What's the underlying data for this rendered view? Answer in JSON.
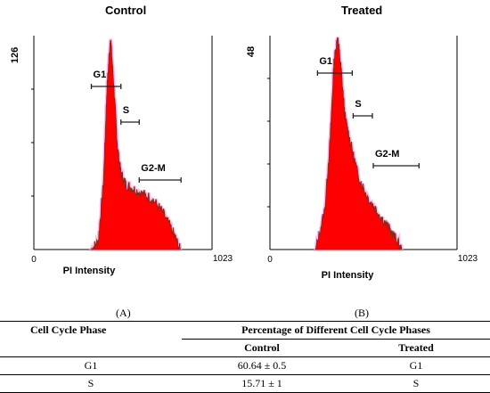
{
  "panels": [
    {
      "id": "A",
      "title": "Control",
      "letter": "(A)",
      "y_max_label": "126",
      "x_min_label": "0",
      "x_max_label": "1023",
      "xlabel": "PI Intensity",
      "gates": [
        {
          "label": "G1"
        },
        {
          "label": "S"
        },
        {
          "label": "G2-M"
        }
      ]
    },
    {
      "id": "B",
      "title": "Treated",
      "letter": "(B)",
      "y_max_label": "48",
      "x_min_label": "0",
      "x_max_label": "1023",
      "xlabel": "PI Intensity",
      "gates": [
        {
          "label": "G1"
        },
        {
          "label": "S"
        },
        {
          "label": "G2-M"
        }
      ]
    }
  ],
  "colors": {
    "histogram_fill": "#ff0000",
    "histogram_edge": "#8b2a14",
    "histogram_glow": "#ff9fe6",
    "axis": "#000000"
  },
  "chart_data": [
    {
      "type": "area",
      "title": "Control",
      "xlabel": "PI Intensity",
      "ylabel": "",
      "xlim": [
        0,
        1023
      ],
      "ylim": [
        0,
        126
      ],
      "series": [
        {
          "x": [
            330,
            370,
            400,
            420,
            440,
            460,
            480,
            500,
            530,
            570,
            620,
            680,
            740,
            800,
            840
          ],
          "values": [
            0,
            5,
            40,
            95,
            126,
            95,
            60,
            45,
            38,
            36,
            33,
            30,
            22,
            10,
            0
          ]
        }
      ],
      "gates": [
        {
          "label": "G1",
          "range": [
            330,
            500
          ]
        },
        {
          "label": "S",
          "range": [
            500,
            605
          ]
        },
        {
          "label": "G2-M",
          "range": [
            605,
            845
          ]
        }
      ]
    },
    {
      "type": "area",
      "title": "Treated",
      "xlabel": "PI Intensity",
      "ylabel": "",
      "xlim": [
        0,
        1023
      ],
      "ylim": [
        0,
        48
      ],
      "series": [
        {
          "x": [
            250,
            300,
            330,
            350,
            370,
            390,
            410,
            440,
            480,
            530,
            580,
            630,
            680,
            720
          ],
          "values": [
            0,
            9,
            25,
            42,
            48,
            40,
            30,
            24,
            17,
            12,
            9,
            6,
            3,
            0
          ]
        }
      ],
      "gates": [
        {
          "label": "G1",
          "range": [
            260,
            450
          ]
        },
        {
          "label": "S",
          "range": [
            455,
            560
          ]
        },
        {
          "label": "G2-M",
          "range": [
            565,
            815
          ]
        }
      ]
    }
  ],
  "table": {
    "header_left": "Cell Cycle Phase",
    "header_right": "Percentage of Different Cell Cycle Phases",
    "sub_control": "Control",
    "sub_treated": "Treated",
    "rows": [
      {
        "phase": "G1",
        "control": "60.64 ± 0.5",
        "treated": "G1"
      },
      {
        "phase": "S",
        "control": "15.71 ± 1",
        "treated": "S"
      }
    ]
  }
}
